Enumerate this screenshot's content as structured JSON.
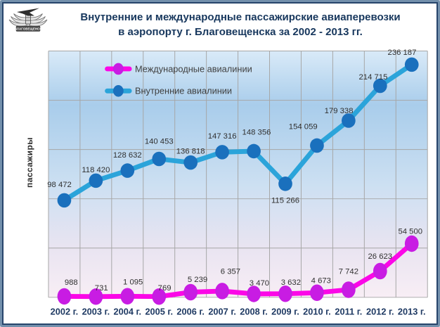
{
  "logo": {
    "caption": "БЛАГОВЕЩЕНСК"
  },
  "title": {
    "line1": "Внутренние и международные пассажирские авиаперевозки",
    "line2": "в аэропорту г. Благовещенска за 2002 - 2013 гг."
  },
  "y_axis_title": "пассажиры",
  "colors": {
    "title_text": "#17375d",
    "axis_label_text": "#1f3a63",
    "data_label_text": "#303030",
    "legend_text": "#3f3f3f",
    "gridline": "#a6a6a6",
    "frame_outer": "#7390ac",
    "frame_inner": "#27456b",
    "international_line": "#fb07e7",
    "international_marker": "#c81ce3",
    "domestic_line": "#2ba4da",
    "domestic_marker": "#1a70bd"
  },
  "chart_data": {
    "type": "line",
    "title": "Внутренние и международные пассажирские авиаперевозки в аэропорту г. Благовещенска за 2002 - 2013 гг.",
    "xlabel": "",
    "ylabel": "пассажиры",
    "categories": [
      "2002 г.",
      "2003 г.",
      "2004 г.",
      "2005 г.",
      "2006 г.",
      "2007 г.",
      "2008 г.",
      "2009 г.",
      "2010 г.",
      "2011 г.",
      "2012 г.",
      "2013 г."
    ],
    "ylim": [
      0,
      250000
    ],
    "grid": true,
    "gridline_color": "#a6a6a6",
    "legend_position": "inside-top-left",
    "plot_bg_gradient": {
      "stops": [
        "#d9eaf8",
        "#a9cdeb",
        "#cde0f2",
        "#e9e4f1",
        "#f8eef5"
      ],
      "offsets": [
        0,
        0.22,
        0.55,
        0.8,
        1
      ]
    },
    "series": [
      {
        "id": "international",
        "name": "Международные авиалинии",
        "color_line": "#fb07e7",
        "color_marker": "#c81ce3",
        "marker_rx": 10,
        "marker_ry": 12,
        "values": [
          988,
          731,
          1095,
          769,
          5239,
          6357,
          3470,
          3632,
          4673,
          7742,
          26623,
          54500
        ],
        "value_labels": [
          "988",
          "731",
          "1 095",
          "769",
          "5 239",
          "6 357",
          "3 470",
          "3 632",
          "4 673",
          "7 742",
          "26 623",
          "54 500"
        ],
        "label_offsets": [
          [
            10,
            -17
          ],
          [
            8,
            -9
          ],
          [
            8,
            -17
          ],
          [
            8,
            -9
          ],
          [
            10,
            -15
          ],
          [
            12,
            -25
          ],
          [
            8,
            -12
          ],
          [
            8,
            -13
          ],
          [
            6,
            -14
          ],
          [
            0,
            -23
          ],
          [
            0,
            -18
          ],
          [
            -2,
            -14
          ]
        ]
      },
      {
        "id": "domestic",
        "name": "Внутренние авиалинии",
        "color_line": "#2ba4da",
        "color_marker": "#1a70bd",
        "marker_rx": 10,
        "marker_ry": 10.5,
        "values": [
          98472,
          118420,
          128632,
          140453,
          136818,
          147316,
          148356,
          115266,
          154059,
          179338,
          214715,
          236187
        ],
        "value_labels": [
          "98 472",
          "118 420",
          "128 632",
          "140 453",
          "136 818",
          "147 316",
          "148 356",
          "115 266",
          "154 059",
          "179 338",
          "214 715",
          "236 187"
        ],
        "label_offsets": [
          [
            -7,
            -19
          ],
          [
            0,
            -12
          ],
          [
            0,
            -19
          ],
          [
            0,
            -22
          ],
          [
            0,
            -13
          ],
          [
            0,
            -20
          ],
          [
            4,
            -24
          ],
          [
            0,
            28
          ],
          [
            -20,
            -24
          ],
          [
            -14,
            -11
          ],
          [
            -10,
            -9
          ],
          [
            -14,
            -14
          ]
        ]
      }
    ]
  }
}
